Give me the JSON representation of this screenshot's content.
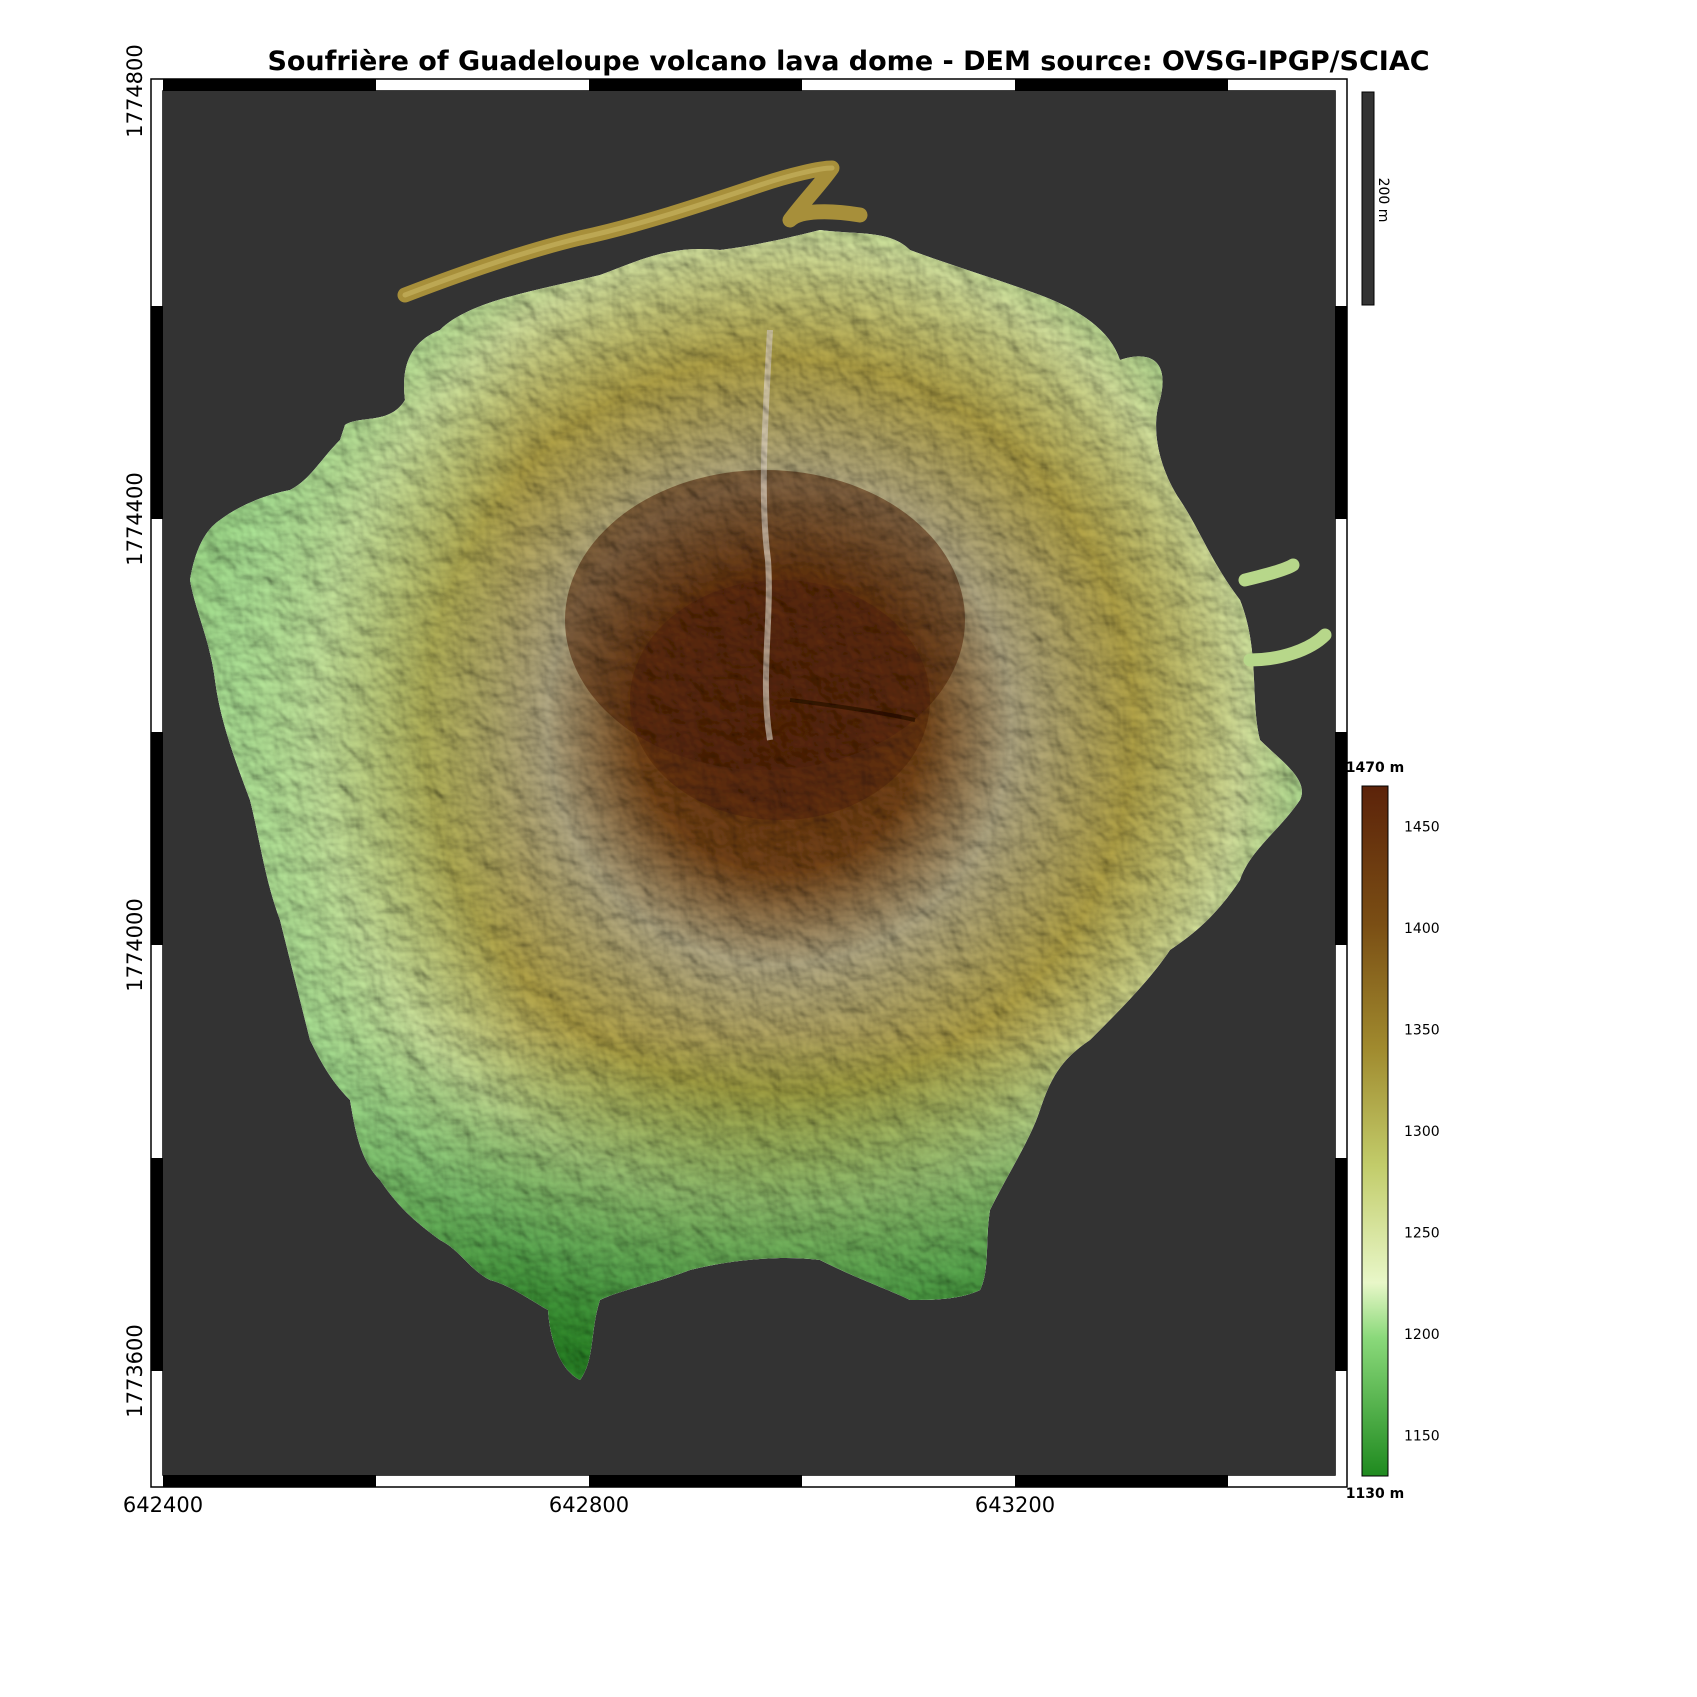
{
  "title": "Soufrière of Guadeloupe volcano lava dome - DEM source: OVSG-IPGP/SCIAC",
  "map": {
    "x_ticks": [
      "642400",
      "642800",
      "643200"
    ],
    "y_ticks": [
      "1774800",
      "1774400",
      "1774000",
      "1773600"
    ],
    "background_color": "#333333",
    "scale_bar_label": "200 m"
  },
  "colorbar": {
    "max_label": "1470 m",
    "min_label": "1130 m",
    "ticks": [
      "1450",
      "1400",
      "1350",
      "1300",
      "1250",
      "1200",
      "1150"
    ],
    "tick_values": [
      1450,
      1400,
      1350,
      1300,
      1250,
      1200,
      1150
    ],
    "range": [
      1130,
      1470
    ],
    "colors": [
      "#1f8a1f",
      "#8ad97a",
      "#e8f7c8",
      "#c2cc6a",
      "#a08a2e",
      "#7a4e14",
      "#5c230a"
    ]
  }
}
